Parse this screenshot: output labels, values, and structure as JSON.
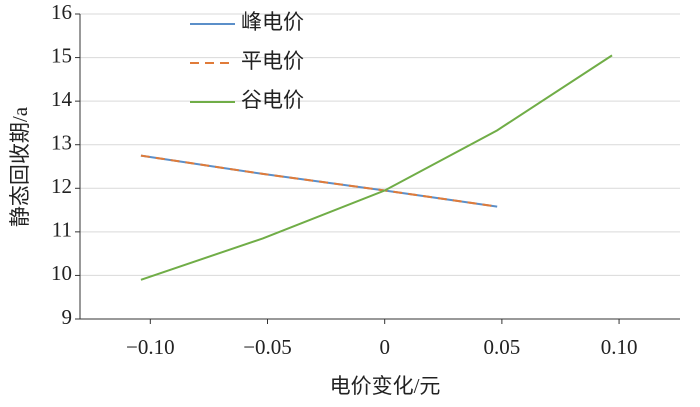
{
  "chart_data": {
    "type": "line",
    "x": [
      -0.104,
      -0.052,
      0,
      0.048,
      0.097
    ],
    "series": [
      {
        "name": "峰电价",
        "color": "#5b8fc9",
        "values": [
          12.75,
          12.33,
          11.95,
          11.58,
          null
        ]
      },
      {
        "name": "平电价",
        "color": "#e07b39",
        "dashed": true,
        "values": [
          12.75,
          12.33,
          11.95,
          11.58,
          null
        ]
      },
      {
        "name": "谷电价",
        "color": "#70ad47",
        "values": [
          9.9,
          10.85,
          11.95,
          13.33,
          15.05
        ]
      }
    ],
    "xlim": [
      -0.13,
      0.126
    ],
    "xticks": [
      {
        "value": -0.1,
        "label": "−0.10"
      },
      {
        "value": -0.05,
        "label": "−0.05"
      },
      0,
      0.05,
      {
        "value": 0.1,
        "label": "0.10"
      }
    ],
    "ylim": [
      9,
      16
    ],
    "yticks": [
      9,
      10,
      11,
      12,
      13,
      14,
      15,
      16
    ],
    "grid": true,
    "legend": "top-left",
    "xlabel": "电价变化/元",
    "ylabel": "静态回收期/a"
  }
}
